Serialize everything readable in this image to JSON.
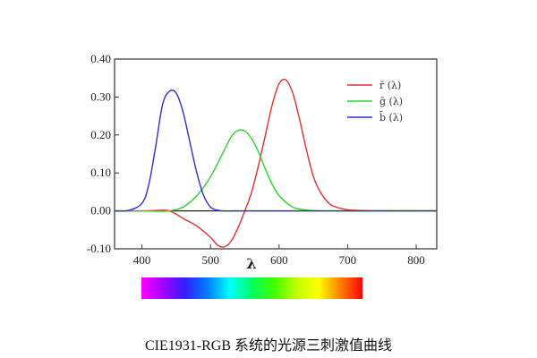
{
  "chart_data": {
    "type": "line",
    "title": "",
    "xlabel": "λ",
    "ylabel": "",
    "xlim": [
      360,
      830
    ],
    "ylim": [
      -0.1,
      0.4
    ],
    "x_ticks": [
      400,
      500,
      600,
      700,
      800
    ],
    "y_ticks": [
      -0.1,
      0.0,
      0.1,
      0.2,
      0.3,
      0.4
    ],
    "y_tick_labels": [
      "-0.10",
      "0.00",
      "0.10",
      "0.20",
      "0.30",
      "0.40"
    ],
    "legend_position": "top-right",
    "zero_line": true,
    "grid": false,
    "series": [
      {
        "name": "r̄ (λ)",
        "color": "#e03030",
        "x": [
          360,
          380,
          400,
          420,
          440,
          460,
          480,
          500,
          510,
          520,
          530,
          540,
          550,
          560,
          570,
          580,
          590,
          600,
          610,
          620,
          630,
          640,
          650,
          660,
          670,
          680,
          700,
          720,
          750,
          800,
          830
        ],
        "y": [
          0.0,
          0.0,
          0.0,
          0.001,
          0.0,
          -0.02,
          -0.04,
          -0.07,
          -0.09,
          -0.095,
          -0.08,
          -0.045,
          0.0,
          0.05,
          0.12,
          0.2,
          0.28,
          0.335,
          0.345,
          0.31,
          0.24,
          0.16,
          0.09,
          0.05,
          0.025,
          0.012,
          0.003,
          0.001,
          0.0,
          0.0,
          0.0
        ]
      },
      {
        "name": "ḡ (λ)",
        "color": "#30d030",
        "x": [
          360,
          400,
          420,
          440,
          460,
          480,
          500,
          520,
          530,
          540,
          550,
          560,
          570,
          580,
          590,
          600,
          620,
          640,
          660,
          680,
          700,
          750,
          800,
          830
        ],
        "y": [
          0.0,
          0.0,
          -0.001,
          0.0,
          0.01,
          0.04,
          0.09,
          0.16,
          0.195,
          0.212,
          0.21,
          0.19,
          0.155,
          0.11,
          0.07,
          0.04,
          0.01,
          0.002,
          0.0,
          0.0,
          0.0,
          0.0,
          0.0,
          0.0
        ]
      },
      {
        "name": "b̄ (λ)",
        "color": "#3030d0",
        "x": [
          360,
          380,
          400,
          410,
          420,
          430,
          440,
          450,
          460,
          470,
          480,
          490,
          500,
          510,
          520,
          540,
          560,
          600,
          700,
          830
        ],
        "y": [
          0.0,
          0.001,
          0.02,
          0.07,
          0.17,
          0.28,
          0.315,
          0.31,
          0.26,
          0.18,
          0.1,
          0.04,
          0.01,
          0.002,
          0.0,
          0.0,
          0.0,
          0.0,
          0.0,
          0.0
        ]
      }
    ]
  },
  "spectrum_bar": {
    "colors": [
      "#ff00ff",
      "#a000ff",
      "#3020ff",
      "#0080ff",
      "#00ffff",
      "#00ff60",
      "#40ff00",
      "#c0ff00",
      "#ffff00",
      "#ff8000",
      "#ff0000"
    ]
  },
  "caption": "CIE1931-RGB 系统的光源三刺激值曲线"
}
